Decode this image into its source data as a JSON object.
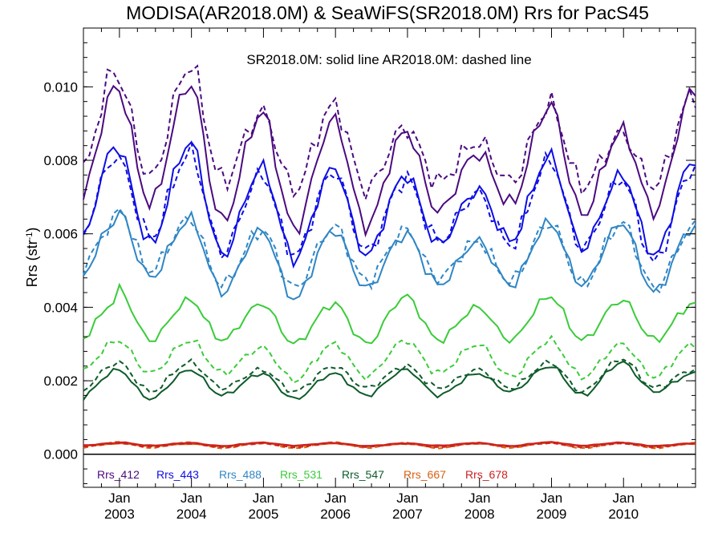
{
  "chart_data": {
    "type": "line",
    "title": "MODISA(AR2018.0M) & SeaWiFS(SR2018.0M)  Rrs for PacS45",
    "subtitle": "SR2018.0M: solid line   AR2018.0M: dashed line",
    "ylabel_main": "Rrs (str",
    "ylabel_sup": "-1",
    "ylabel_end": ")",
    "ylim": [
      -0.0009,
      0.0116
    ],
    "xlim": [
      2002.5,
      2011.0
    ],
    "yticks": [
      {
        "value": 0.0,
        "label": "0.000"
      },
      {
        "value": 0.002,
        "label": "0.002"
      },
      {
        "value": 0.004,
        "label": "0.004"
      },
      {
        "value": 0.006,
        "label": "0.006"
      },
      {
        "value": 0.008,
        "label": "0.008"
      },
      {
        "value": 0.01,
        "label": "0.010"
      }
    ],
    "xticks": [
      {
        "value": 2003.0,
        "month": "Jan",
        "year": "2003"
      },
      {
        "value": 2004.0,
        "month": "Jan",
        "year": "2004"
      },
      {
        "value": 2005.0,
        "month": "Jan",
        "year": "2005"
      },
      {
        "value": 2006.0,
        "month": "Jan",
        "year": "2006"
      },
      {
        "value": 2007.0,
        "month": "Jan",
        "year": "2007"
      },
      {
        "value": 2008.0,
        "month": "Jan",
        "year": "2008"
      },
      {
        "value": 2009.0,
        "month": "Jan",
        "year": "2009"
      },
      {
        "value": 2010.0,
        "month": "Jan",
        "year": "2010"
      }
    ],
    "zero_line": 0.0,
    "series": [
      {
        "name": "Rrs_412",
        "color": "#4b0a80",
        "sr_peaks": [
          0.0099,
          0.0101,
          0.0093,
          0.0091,
          0.0088,
          0.0082,
          0.0095,
          0.0088,
          0.0099
        ],
        "sr_troughs": [
          0.0068,
          0.0063,
          0.0061,
          0.0062,
          0.0066,
          0.0068,
          0.0065,
          0.0066
        ],
        "ar_peaks": [
          0.0102,
          0.0106,
          0.0093,
          0.0095,
          0.0089,
          0.0085,
          0.0095,
          0.0087,
          0.0098
        ],
        "ar_troughs": [
          0.0075,
          0.0074,
          0.0072,
          0.0072,
          0.0074,
          0.0074,
          0.0073,
          0.0073
        ]
      },
      {
        "name": "Rrs_443",
        "color": "#0d0de6",
        "sr_peaks": [
          0.0083,
          0.0085,
          0.0078,
          0.0078,
          0.0076,
          0.0072,
          0.0081,
          0.0076,
          0.008
        ],
        "sr_troughs": [
          0.0057,
          0.0054,
          0.0053,
          0.0054,
          0.0057,
          0.0058,
          0.0056,
          0.0054
        ],
        "ar_peaks": [
          0.008,
          0.0082,
          0.0076,
          0.0077,
          0.0075,
          0.0071,
          0.008,
          0.0075,
          0.0078
        ],
        "ar_troughs": [
          0.0059,
          0.0055,
          0.0054,
          0.0055,
          0.0058,
          0.0057,
          0.0056,
          0.0052
        ]
      },
      {
        "name": "Rrs_488",
        "color": "#2f86c5",
        "sr_peaks": [
          0.0066,
          0.0064,
          0.0061,
          0.0061,
          0.006,
          0.0058,
          0.0063,
          0.0063,
          0.0062
        ],
        "sr_troughs": [
          0.0048,
          0.0044,
          0.0042,
          0.0045,
          0.0046,
          0.0046,
          0.0046,
          0.0044
        ],
        "ar_peaks": [
          0.0067,
          0.0064,
          0.0061,
          0.0062,
          0.0061,
          0.0058,
          0.0063,
          0.0063,
          0.0062
        ],
        "ar_troughs": [
          0.005,
          0.0046,
          0.0045,
          0.0047,
          0.0048,
          0.0047,
          0.0046,
          0.0045
        ]
      },
      {
        "name": "Rrs_531",
        "color": "#3acc3a",
        "sr_peaks": [
          0.0045,
          0.0042,
          0.0041,
          0.0041,
          0.0043,
          0.004,
          0.0043,
          0.0042,
          0.0041
        ],
        "sr_troughs": [
          0.0031,
          0.0031,
          0.003,
          0.003,
          0.0031,
          0.0031,
          0.0031,
          0.0031
        ],
        "ar_peaks": [
          0.0031,
          0.0031,
          0.0029,
          0.003,
          0.0031,
          0.003,
          0.0031,
          0.003,
          0.003
        ],
        "ar_troughs": [
          0.0022,
          0.0022,
          0.002,
          0.0021,
          0.0022,
          0.0021,
          0.0021,
          0.0021
        ]
      },
      {
        "name": "Rrs_547",
        "color": "#0d5b2a",
        "sr_peaks": [
          0.0023,
          0.0023,
          0.0022,
          0.0022,
          0.0023,
          0.0022,
          0.0024,
          0.0025,
          0.0022
        ],
        "sr_troughs": [
          0.0015,
          0.0016,
          0.0015,
          0.0016,
          0.0016,
          0.0017,
          0.0016,
          0.0017
        ],
        "ar_peaks": [
          0.0025,
          0.0025,
          0.0023,
          0.0024,
          0.0024,
          0.0023,
          0.0025,
          0.0026,
          0.0023
        ],
        "ar_troughs": [
          0.0017,
          0.0018,
          0.0017,
          0.0018,
          0.0018,
          0.0018,
          0.0017,
          0.0018
        ]
      },
      {
        "name": "Rrs_667",
        "color": "#d9600f",
        "sr_peaks": [
          0.0003,
          0.00028,
          0.0003,
          0.00029,
          0.00028,
          0.00029,
          0.00031,
          0.0003,
          0.00028
        ],
        "sr_troughs": [
          0.00022,
          0.00021,
          0.00022,
          0.00021,
          0.00022,
          0.00021,
          0.00022,
          0.00021
        ],
        "ar_peaks": [
          0.00034,
          0.00033,
          0.00032,
          0.00033,
          0.00031,
          0.00032,
          0.00034,
          0.00032,
          0.00031
        ],
        "ar_troughs": [
          0.00017,
          0.00016,
          0.00016,
          0.00017,
          0.00016,
          0.00017,
          0.00016,
          0.00016
        ]
      },
      {
        "name": "Rrs_678",
        "color": "#cc2020",
        "sr_peaks": [
          0.00033,
          0.00031,
          0.00032,
          0.00031,
          0.0003,
          0.00031,
          0.00033,
          0.00032,
          0.0003
        ],
        "sr_troughs": [
          0.00024,
          0.00023,
          0.00024,
          0.00023,
          0.00024,
          0.00023,
          0.00024,
          0.00023
        ],
        "ar_peaks": [
          0.0003,
          0.00029,
          0.00029,
          0.0003,
          0.00028,
          0.00029,
          0.0003,
          0.00029,
          0.00028
        ],
        "ar_troughs": [
          0.0002,
          0.00019,
          0.00019,
          0.0002,
          0.00019,
          0.0002,
          0.00019,
          0.00019
        ]
      }
    ]
  }
}
